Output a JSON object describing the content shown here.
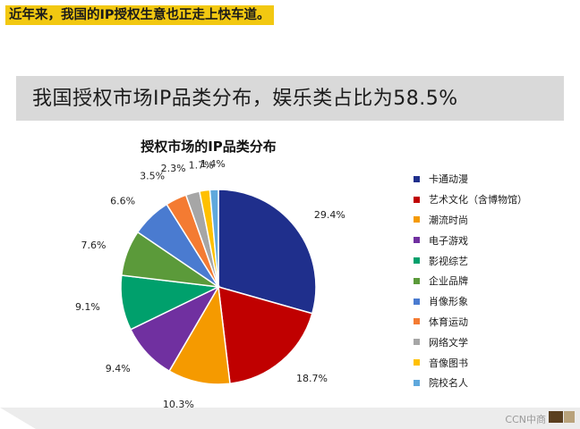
{
  "caption": "近年来，我国的IP授权生意也正走上快车道。",
  "slide": {
    "title": "我国授权市场IP品类分布，娱乐类占比为58.5%"
  },
  "chart_data": {
    "type": "pie",
    "title": "授权市场的IP品类分布",
    "legend_position": "right",
    "categories": [
      "卡通动漫",
      "艺术文化（含博物馆）",
      "潮流时尚",
      "电子游戏",
      "影视综艺",
      "企业品牌",
      "肖像形象",
      "体育运动",
      "网络文学",
      "音像图书",
      "院校名人"
    ],
    "values": [
      29.4,
      18.7,
      10.3,
      9.4,
      9.1,
      7.6,
      6.6,
      3.5,
      2.3,
      1.7,
      1.4
    ],
    "labels": [
      "29.4%",
      "18.7%",
      "10.3%",
      "9.4%",
      "9.1%",
      "7.6%",
      "6.6%",
      "3.5%",
      "2.3%",
      "1.7%",
      "1.4%"
    ],
    "colors": [
      "#1f2f8c",
      "#c00000",
      "#f59a00",
      "#7030a0",
      "#00a06c",
      "#5b9a3a",
      "#4a7bd0",
      "#f47b32",
      "#a6a6a6",
      "#ffc000",
      "#5fa8dc"
    ]
  },
  "footer": {
    "brand": "CCN中商"
  }
}
